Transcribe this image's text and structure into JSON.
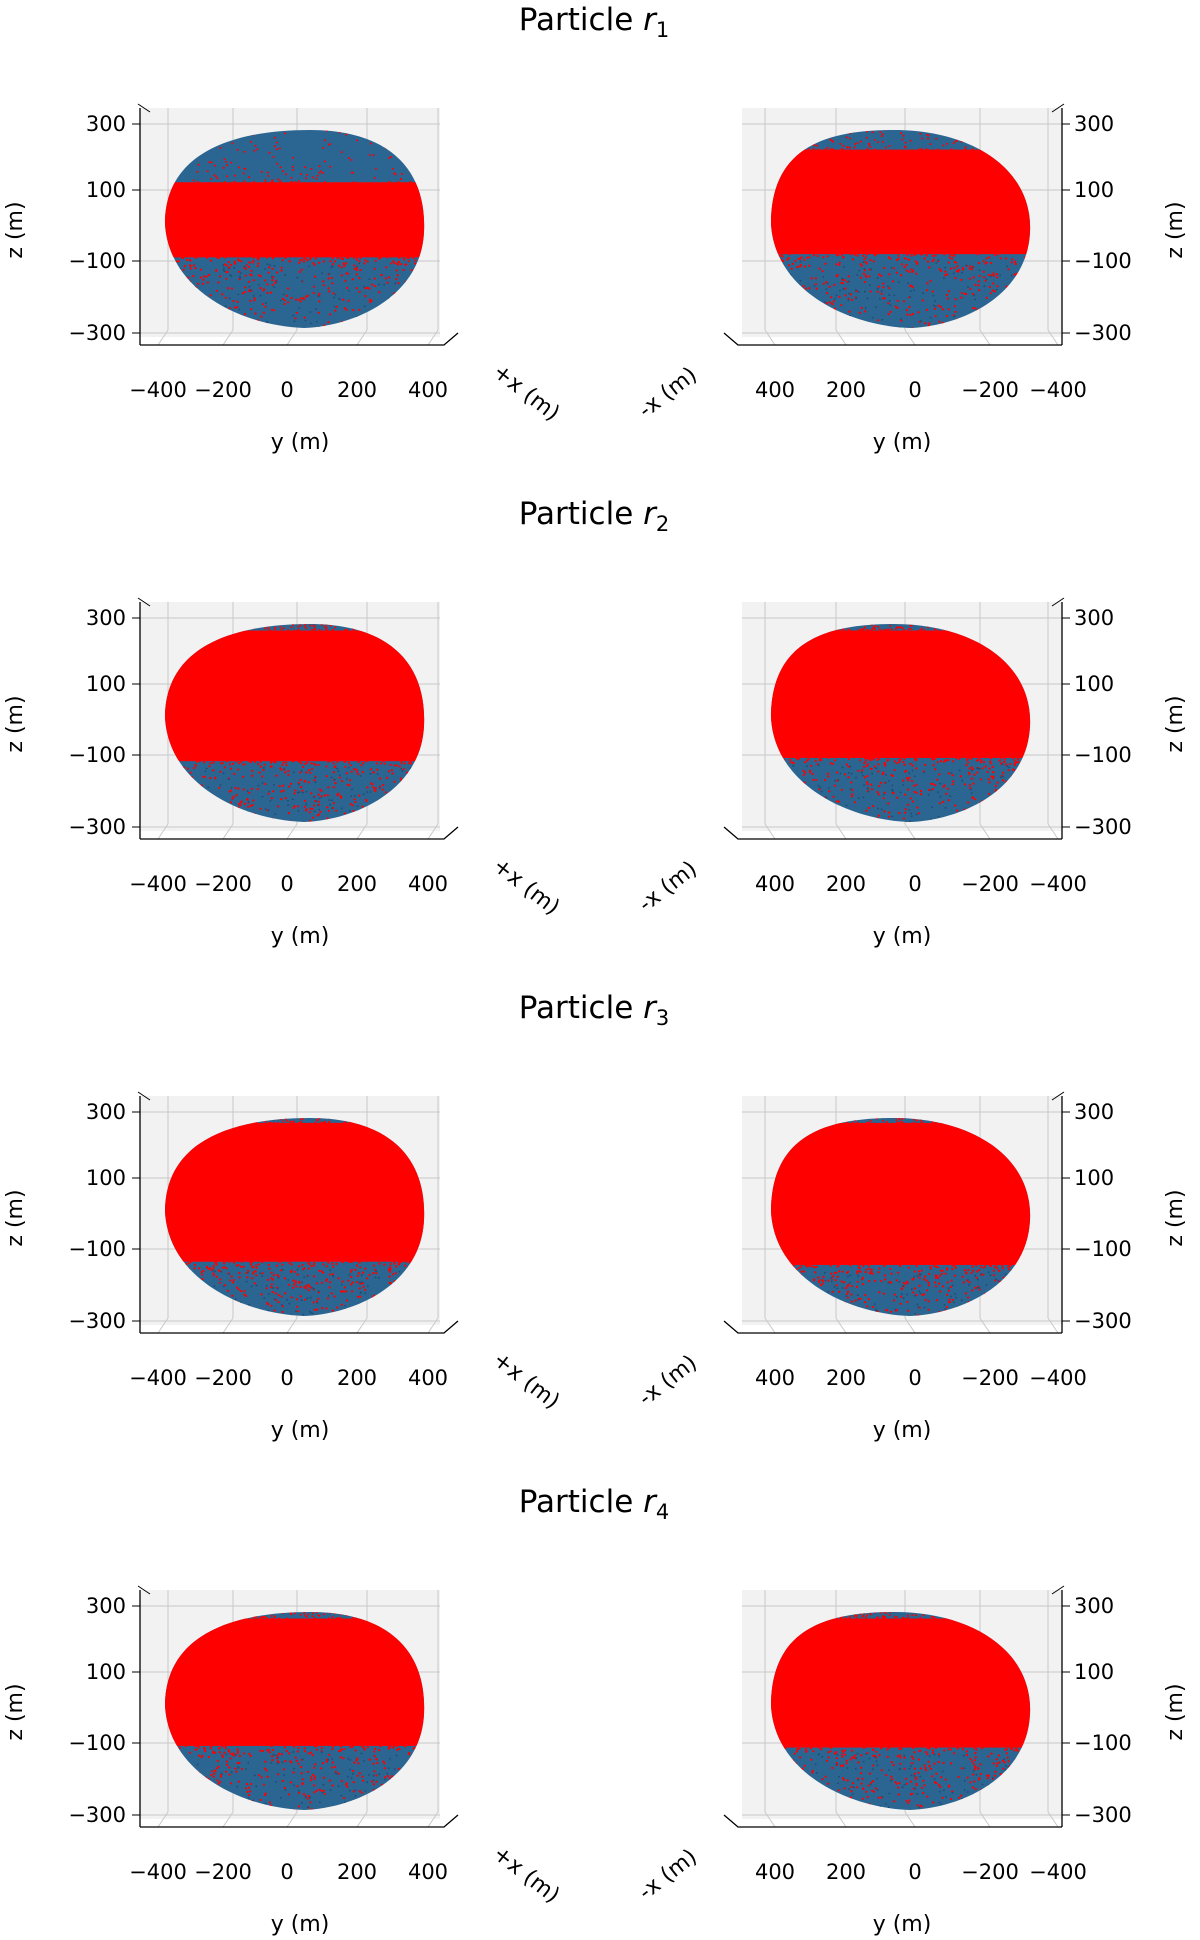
{
  "figure": {
    "title_prefix": "Particle",
    "panels": [
      {
        "id": "r1",
        "title_sub": "1"
      },
      {
        "id": "r2",
        "title_sub": "2"
      },
      {
        "id": "r3",
        "title_sub": "3"
      },
      {
        "id": "r4",
        "title_sub": "4"
      }
    ]
  },
  "colors": {
    "body": "#2b6591",
    "body_dark": "#1d4c72",
    "particles": "#ff0000",
    "axis": "#000000",
    "grid": "#c8c8c8",
    "pane": "#f2f2f2"
  },
  "chart_data": {
    "type": "scatter",
    "views": [
      {
        "name": "+x view",
        "x_axis_label": "y (m)",
        "x_ticks": [
          "−400",
          "−200",
          "0",
          "200",
          "400"
        ],
        "z_axis_label": "z (m)",
        "z_ticks": [
          "300",
          "100",
          "−100",
          "−300"
        ],
        "depth_axis_label": "+x (m)",
        "z_axis_side": "left"
      },
      {
        "name": "-x view",
        "x_axis_label": "y (m)",
        "x_ticks": [
          "400",
          "200",
          "0",
          "−200",
          "−400"
        ],
        "z_axis_label": "z (m)",
        "z_ticks": [
          "300",
          "100",
          "−100",
          "−300"
        ],
        "depth_axis_label": "-x (m)",
        "z_axis_side": "right"
      }
    ],
    "xlim": [
      -450,
      450
    ],
    "zlim": [
      -350,
      350
    ],
    "coverage": [
      {
        "particle": "r1",
        "plusx": {
          "red_top_z": 140,
          "red_bottom_z": -90
        },
        "minusx": {
          "red_top_z": 240,
          "red_bottom_z": -80
        }
      },
      {
        "particle": "r2",
        "plusx": {
          "red_top_z": 280,
          "red_bottom_z": -120
        },
        "minusx": {
          "red_top_z": 280,
          "red_bottom_z": -110
        }
      },
      {
        "particle": "r3",
        "plusx": {
          "red_top_z": 285,
          "red_bottom_z": -140
        },
        "minusx": {
          "red_top_z": 285,
          "red_bottom_z": -150
        }
      },
      {
        "particle": "r4",
        "plusx": {
          "red_top_z": 280,
          "red_bottom_z": -110
        },
        "minusx": {
          "red_top_z": 280,
          "red_bottom_z": -115
        }
      }
    ]
  }
}
